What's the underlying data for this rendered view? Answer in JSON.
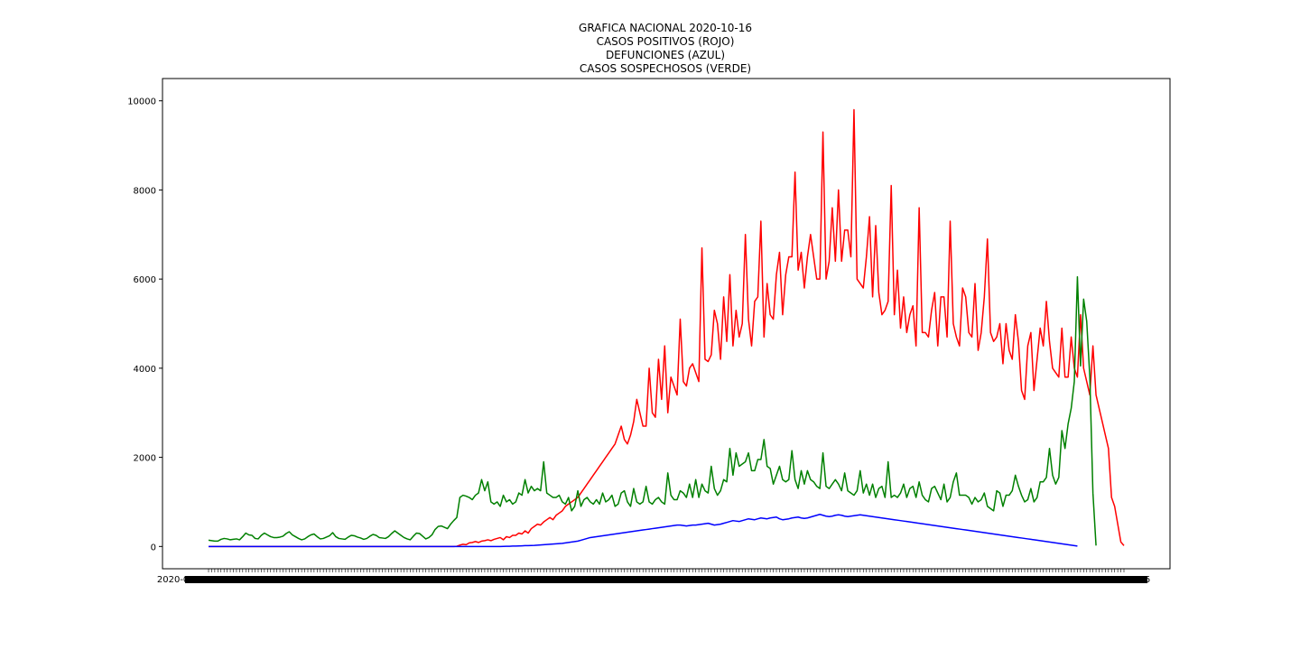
{
  "chart_data": {
    "type": "line",
    "title_lines": [
      "GRAFICA NACIONAL 2020-10-16",
      "CASOS POSITIVOS (ROJO)",
      "DEFUNCIONES (AZUL)",
      "CASOS SOSPECHOSOS (VERDE)"
    ],
    "xlabel": "",
    "ylabel": "",
    "ylim": [
      -500,
      10500
    ],
    "y_ticks": [
      0,
      2000,
      4000,
      6000,
      8000,
      10000
    ],
    "x_tick_label_start": "2020-01-01",
    "x_tick_label_end": "2020-10-16",
    "grid": false,
    "legend": "none",
    "series": [
      {
        "key": "positivos",
        "color": "#ff0000",
        "values": [
          0,
          0,
          0,
          0,
          0,
          0,
          0,
          0,
          0,
          0,
          0,
          0,
          0,
          0,
          0,
          0,
          0,
          0,
          0,
          0,
          0,
          0,
          0,
          0,
          0,
          0,
          0,
          0,
          0,
          0,
          0,
          0,
          0,
          0,
          0,
          0,
          0,
          0,
          0,
          0,
          0,
          0,
          0,
          0,
          0,
          0,
          0,
          0,
          0,
          0,
          0,
          0,
          0,
          0,
          0,
          0,
          0,
          0,
          0,
          0,
          0,
          0,
          0,
          0,
          0,
          0,
          0,
          0,
          0,
          0,
          0,
          0,
          0,
          0,
          0,
          0,
          0,
          0,
          0,
          0,
          5,
          30,
          50,
          40,
          80,
          90,
          110,
          90,
          120,
          130,
          150,
          130,
          160,
          180,
          200,
          150,
          220,
          200,
          250,
          250,
          300,
          280,
          350,
          300,
          400,
          450,
          500,
          480,
          550,
          600,
          650,
          600,
          700,
          750,
          800,
          900,
          950,
          1000,
          1050,
          1100,
          1200,
          1300,
          1400,
          1500,
          1600,
          1700,
          1800,
          1900,
          2000,
          2100,
          2200,
          2300,
          2500,
          2700,
          2400,
          2300,
          2500,
          2800,
          3300,
          3000,
          2700,
          2700,
          4000,
          3000,
          2900,
          4200,
          3300,
          4500,
          3000,
          3800,
          3600,
          3400,
          5100,
          3700,
          3600,
          4000,
          4100,
          3900,
          3700,
          6700,
          4200,
          4150,
          4300,
          5300,
          5000,
          4200,
          5600,
          4600,
          6100,
          4500,
          5300,
          4700,
          5000,
          7000,
          5100,
          4500,
          5500,
          5600,
          7300,
          4700,
          5900,
          5200,
          5100,
          6100,
          6600,
          5200,
          6100,
          6500,
          6500,
          8400,
          6200,
          6600,
          5800,
          6500,
          7000,
          6500,
          6000,
          6000,
          9300,
          6000,
          6400,
          7600,
          6400,
          8000,
          6400,
          7100,
          7100,
          6500,
          9800,
          6000,
          5900,
          5800,
          6500,
          7400,
          5600,
          7200,
          5700,
          5200,
          5300,
          5500,
          8100,
          5200,
          6200,
          4900,
          5600,
          4800,
          5200,
          5400,
          4500,
          7600,
          4800,
          4800,
          4700,
          5300,
          5700,
          4500,
          5600,
          5600,
          4700,
          7300,
          5000,
          4700,
          4500,
          5800,
          5600,
          4800,
          4700,
          5900,
          4400,
          4800,
          5600,
          6900,
          4800,
          4600,
          4700,
          5000,
          4100,
          5000,
          4400,
          4200,
          5200,
          4600,
          3500,
          3300,
          4500,
          4800,
          3500,
          4200,
          4900,
          4500,
          5500,
          4600,
          4000,
          3900,
          3800,
          4900,
          3800,
          3800,
          4700,
          4000,
          3800,
          5200,
          4000,
          3700,
          3400,
          4500,
          3400,
          3100,
          2800,
          2500,
          2200,
          1100,
          900,
          500,
          100,
          20
        ]
      },
      {
        "key": "defunciones",
        "color": "#0000ff",
        "values": [
          0,
          0,
          0,
          0,
          0,
          0,
          0,
          0,
          0,
          0,
          0,
          0,
          0,
          0,
          0,
          0,
          0,
          0,
          0,
          0,
          0,
          0,
          0,
          0,
          0,
          0,
          0,
          0,
          0,
          0,
          0,
          0,
          0,
          0,
          0,
          0,
          0,
          0,
          0,
          0,
          0,
          0,
          0,
          0,
          0,
          0,
          0,
          0,
          0,
          0,
          0,
          0,
          0,
          0,
          0,
          0,
          0,
          0,
          0,
          0,
          0,
          0,
          0,
          0,
          0,
          0,
          0,
          0,
          0,
          0,
          0,
          0,
          0,
          0,
          0,
          0,
          0,
          0,
          0,
          0,
          0,
          0,
          0,
          0,
          0,
          0,
          0,
          0,
          0,
          0,
          0,
          0,
          0,
          0,
          0,
          2,
          3,
          5,
          8,
          10,
          12,
          15,
          18,
          20,
          22,
          25,
          30,
          35,
          40,
          45,
          50,
          55,
          60,
          65,
          70,
          80,
          90,
          100,
          110,
          120,
          140,
          160,
          180,
          200,
          210,
          220,
          230,
          240,
          250,
          260,
          270,
          280,
          290,
          300,
          310,
          320,
          330,
          340,
          350,
          360,
          370,
          380,
          390,
          400,
          410,
          420,
          430,
          440,
          450,
          460,
          470,
          480,
          480,
          470,
          460,
          470,
          480,
          480,
          490,
          500,
          510,
          520,
          500,
          480,
          490,
          500,
          520,
          540,
          560,
          580,
          570,
          560,
          580,
          600,
          620,
          610,
          600,
          620,
          640,
          630,
          620,
          640,
          650,
          660,
          620,
          600,
          610,
          620,
          640,
          650,
          660,
          640,
          630,
          640,
          660,
          680,
          700,
          720,
          700,
          680,
          670,
          680,
          700,
          710,
          700,
          680,
          670,
          680,
          690,
          700,
          710,
          700,
          690,
          680,
          670,
          660,
          650,
          640,
          630,
          620,
          610,
          600,
          590,
          580,
          570,
          560,
          550,
          540,
          530,
          520,
          510,
          500,
          490,
          480,
          470,
          460,
          450,
          440,
          430,
          420,
          410,
          400,
          390,
          380,
          370,
          360,
          350,
          340,
          330,
          320,
          310,
          300,
          290,
          280,
          270,
          260,
          250,
          240,
          230,
          220,
          210,
          200,
          190,
          180,
          170,
          160,
          150,
          140,
          130,
          120,
          110,
          100,
          90,
          80,
          70,
          60,
          50,
          40,
          30,
          20,
          10
        ]
      },
      {
        "key": "sospechosos",
        "color": "#008000",
        "values": [
          140,
          130,
          120,
          120,
          160,
          180,
          170,
          150,
          160,
          170,
          150,
          220,
          300,
          260,
          250,
          180,
          170,
          250,
          300,
          260,
          220,
          200,
          200,
          210,
          230,
          290,
          330,
          260,
          220,
          180,
          150,
          170,
          220,
          260,
          280,
          220,
          170,
          180,
          210,
          240,
          310,
          220,
          180,
          170,
          160,
          210,
          250,
          240,
          210,
          190,
          160,
          180,
          230,
          270,
          250,
          200,
          190,
          180,
          220,
          290,
          350,
          300,
          250,
          200,
          170,
          150,
          230,
          300,
          290,
          230,
          170,
          200,
          260,
          380,
          450,
          460,
          430,
          400,
          500,
          580,
          650,
          1100,
          1150,
          1130,
          1100,
          1050,
          1150,
          1200,
          1500,
          1250,
          1450,
          1000,
          950,
          1000,
          900,
          1150,
          1000,
          1050,
          950,
          1000,
          1200,
          1150,
          1500,
          1200,
          1350,
          1250,
          1300,
          1250,
          1900,
          1200,
          1150,
          1100,
          1100,
          1150,
          1000,
          950,
          1100,
          800,
          900,
          1250,
          900,
          1050,
          1100,
          1000,
          950,
          1050,
          950,
          1200,
          1000,
          1050,
          1150,
          900,
          950,
          1200,
          1250,
          1000,
          900,
          1300,
          1000,
          950,
          1000,
          1350,
          1000,
          950,
          1050,
          1100,
          1000,
          950,
          1650,
          1150,
          1050,
          1050,
          1250,
          1200,
          1100,
          1400,
          1100,
          1500,
          1100,
          1400,
          1250,
          1200,
          1800,
          1300,
          1150,
          1250,
          1500,
          1450,
          2200,
          1600,
          2100,
          1800,
          1850,
          1900,
          2100,
          1700,
          1700,
          1950,
          1950,
          2400,
          1800,
          1750,
          1400,
          1600,
          1800,
          1500,
          1450,
          1500,
          2150,
          1500,
          1300,
          1700,
          1400,
          1700,
          1500,
          1450,
          1350,
          1300,
          2100,
          1350,
          1300,
          1400,
          1500,
          1400,
          1250,
          1650,
          1250,
          1200,
          1150,
          1250,
          1700,
          1200,
          1400,
          1150,
          1400,
          1100,
          1300,
          1350,
          1100,
          1900,
          1100,
          1150,
          1100,
          1200,
          1400,
          1100,
          1300,
          1350,
          1100,
          1450,
          1150,
          1050,
          1000,
          1300,
          1350,
          1200,
          1050,
          1400,
          1000,
          1100,
          1450,
          1650,
          1150,
          1150,
          1150,
          1100,
          950,
          1100,
          1000,
          1050,
          1200,
          900,
          850,
          800,
          1250,
          1200,
          900,
          1150,
          1150,
          1250,
          1600,
          1350,
          1150,
          1000,
          1050,
          1300,
          1000,
          1100,
          1450,
          1450,
          1550,
          2200,
          1600,
          1400,
          1550,
          2600,
          2200,
          2750,
          3100,
          3700,
          6050,
          4050,
          5550,
          5050,
          3800,
          1200,
          20
        ]
      }
    ]
  }
}
